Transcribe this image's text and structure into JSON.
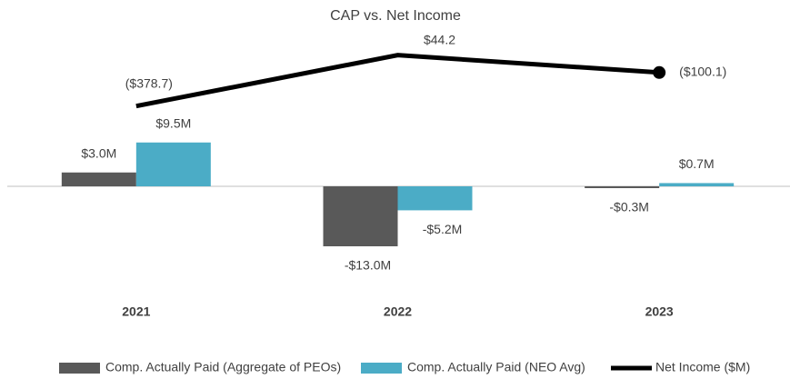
{
  "chart_data": {
    "type": "bar",
    "title": "CAP vs. Net Income",
    "categories": [
      "2021",
      "2022",
      "2023"
    ],
    "series": [
      {
        "name": "Comp. Actually Paid (Aggregate of PEOs)",
        "color": "#595959",
        "values": [
          3.0,
          -13.0,
          -0.3
        ],
        "value_labels": [
          "$3.0M",
          "-$13.0M",
          "-$0.3M"
        ]
      },
      {
        "name": "Comp. Actually Paid (NEO Avg)",
        "color": "#4bacc6",
        "values": [
          9.5,
          -5.2,
          0.7
        ],
        "value_labels": [
          "$9.5M",
          "-$5.2M",
          "$0.7M"
        ]
      },
      {
        "name": "Net Income ($M)",
        "type": "line",
        "axis": "y2",
        "color": "#000000",
        "values": [
          -378.7,
          44.2,
          -100.1
        ],
        "value_labels": [
          "($378.7)",
          "$44.2",
          "($100.1)"
        ]
      }
    ],
    "ylim": [
      -32.5,
      32.5
    ],
    "y2lim": [
      -2290,
      200
    ],
    "legend": "bottom"
  }
}
